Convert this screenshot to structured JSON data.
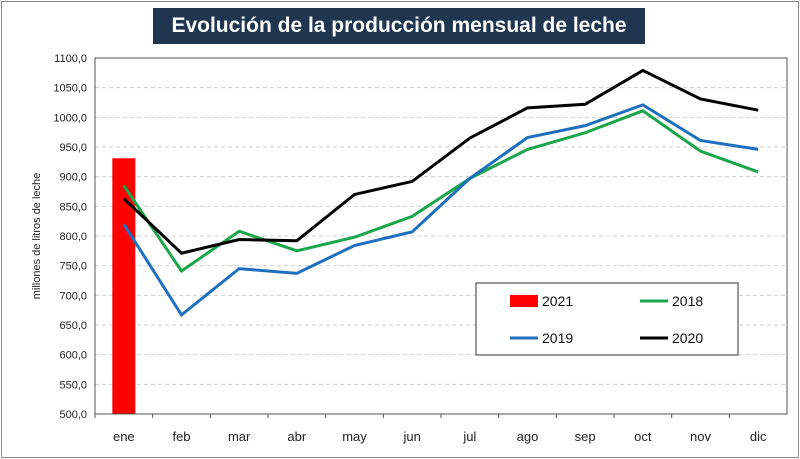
{
  "chart_data": {
    "type": "line",
    "title": "Evolución de la producción mensual de leche",
    "xlabel": "",
    "ylabel": "millones de litros de leche",
    "ylim": [
      500,
      1100
    ],
    "ytick_step": 50,
    "ytick_labels": [
      "500,0",
      "550,0",
      "600,0",
      "650,0",
      "700,0",
      "750,0",
      "800,0",
      "850,0",
      "900,0",
      "950,0",
      "1000,0",
      "1050,0",
      "1100,0"
    ],
    "grid": true,
    "legend_placement": "bottom-right",
    "categories": [
      "ene",
      "feb",
      "mar",
      "abr",
      "may",
      "jun",
      "jul",
      "ago",
      "sep",
      "oct",
      "nov",
      "dic"
    ],
    "series": [
      {
        "name": "2021",
        "kind": "bar",
        "color": "#ff0000",
        "values": [
          931,
          null,
          null,
          null,
          null,
          null,
          null,
          null,
          null,
          null,
          null,
          null
        ]
      },
      {
        "name": "2018",
        "kind": "line",
        "color": "#1aa64a",
        "values": [
          885,
          741,
          808,
          775,
          798,
          833,
          897,
          946,
          974,
          1011,
          943,
          908
        ]
      },
      {
        "name": "2019",
        "kind": "line",
        "color": "#1f6fbf",
        "values": [
          820,
          667,
          745,
          737,
          784,
          807,
          897,
          966,
          986,
          1021,
          961,
          946
        ]
      },
      {
        "name": "2020",
        "kind": "line",
        "color": "#000000",
        "values": [
          863,
          771,
          794,
          792,
          870,
          892,
          965,
          1016,
          1022,
          1079,
          1031,
          1012
        ]
      }
    ]
  }
}
